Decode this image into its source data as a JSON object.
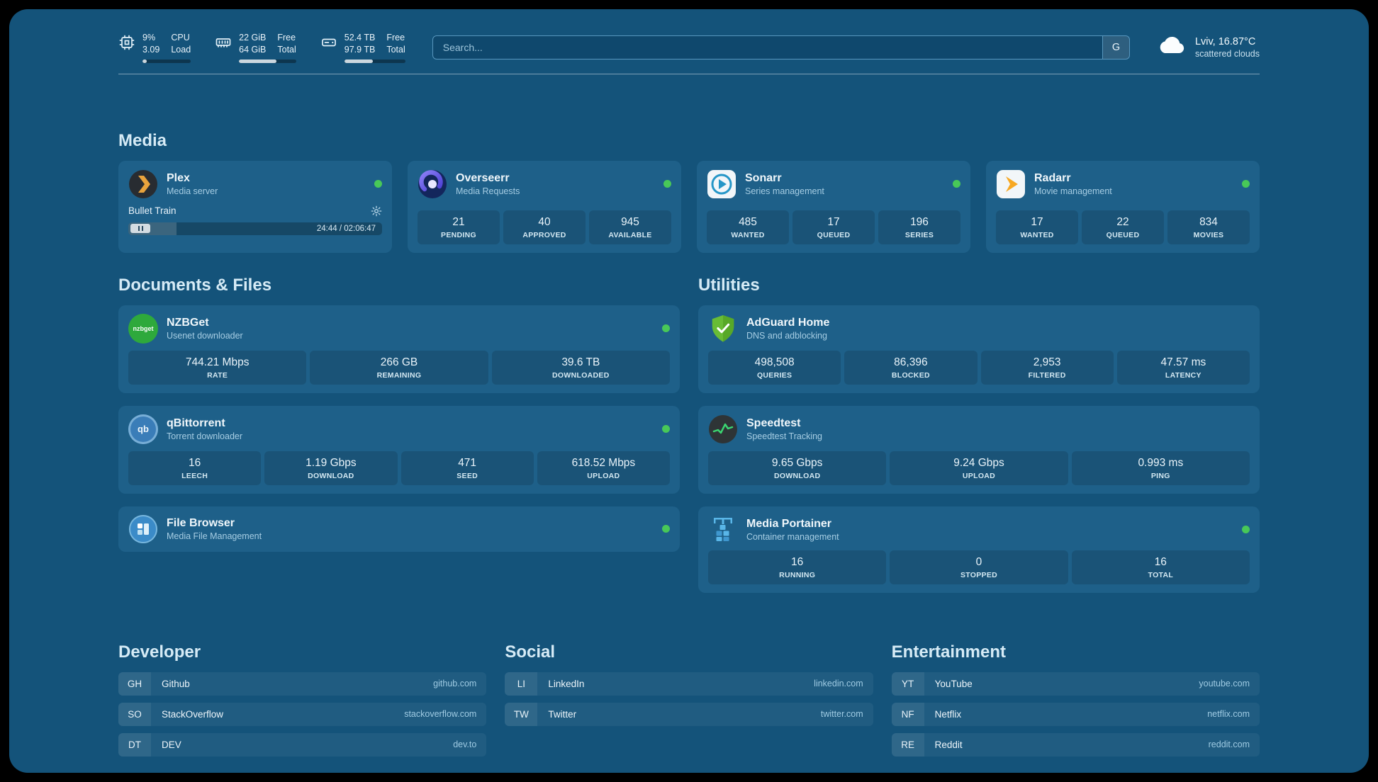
{
  "topbar": {
    "cpu": {
      "line1": "9%",
      "line2": "3.09",
      "label1": "CPU",
      "label2": "Load",
      "progress_pct": 9
    },
    "ram": {
      "line1": "22 GiB",
      "line2": "64 GiB",
      "label1": "Free",
      "label2": "Total",
      "progress_pct": 66
    },
    "disk": {
      "line1": "52.4 TB",
      "line2": "97.9 TB",
      "label1": "Free",
      "label2": "Total",
      "progress_pct": 47
    },
    "search": {
      "placeholder": "Search...",
      "engine_label": "G"
    },
    "weather": {
      "location": "Lviv, 16.87°C",
      "condition": "scattered clouds"
    }
  },
  "media": {
    "title": "Media",
    "plex": {
      "name": "Plex",
      "subtitle": "Media server",
      "now_playing": "Bullet Train",
      "time": "24:44 / 02:06:47",
      "progress_pct": 19
    },
    "overseerr": {
      "name": "Overseerr",
      "subtitle": "Media Requests",
      "stats": [
        {
          "value": "21",
          "label": "PENDING"
        },
        {
          "value": "40",
          "label": "APPROVED"
        },
        {
          "value": "945",
          "label": "AVAILABLE"
        }
      ]
    },
    "sonarr": {
      "name": "Sonarr",
      "subtitle": "Series management",
      "stats": [
        {
          "value": "485",
          "label": "WANTED"
        },
        {
          "value": "17",
          "label": "QUEUED"
        },
        {
          "value": "196",
          "label": "SERIES"
        }
      ]
    },
    "radarr": {
      "name": "Radarr",
      "subtitle": "Movie management",
      "stats": [
        {
          "value": "17",
          "label": "WANTED"
        },
        {
          "value": "22",
          "label": "QUEUED"
        },
        {
          "value": "834",
          "label": "MOVIES"
        }
      ]
    }
  },
  "documents": {
    "title": "Documents & Files",
    "nzbget": {
      "name": "NZBGet",
      "subtitle": "Usenet downloader",
      "icon_text": "nzbget",
      "stats": [
        {
          "value": "744.21 Mbps",
          "label": "RATE"
        },
        {
          "value": "266 GB",
          "label": "REMAINING"
        },
        {
          "value": "39.6 TB",
          "label": "DOWNLOADED"
        }
      ]
    },
    "qbittorrent": {
      "name": "qBittorrent",
      "subtitle": "Torrent downloader",
      "icon_text": "qb",
      "stats": [
        {
          "value": "16",
          "label": "LEECH"
        },
        {
          "value": "1.19 Gbps",
          "label": "DOWNLOAD"
        },
        {
          "value": "471",
          "label": "SEED"
        },
        {
          "value": "618.52 Mbps",
          "label": "UPLOAD"
        }
      ]
    },
    "filebrowser": {
      "name": "File Browser",
      "subtitle": "Media File Management"
    }
  },
  "utilities": {
    "title": "Utilities",
    "adguard": {
      "name": "AdGuard Home",
      "subtitle": "DNS and adblocking",
      "stats": [
        {
          "value": "498,508",
          "label": "QUERIES"
        },
        {
          "value": "86,396",
          "label": "BLOCKED"
        },
        {
          "value": "2,953",
          "label": "FILTERED"
        },
        {
          "value": "47.57 ms",
          "label": "LATENCY"
        }
      ]
    },
    "speedtest": {
      "name": "Speedtest",
      "subtitle": "Speedtest Tracking",
      "stats": [
        {
          "value": "9.65 Gbps",
          "label": "DOWNLOAD"
        },
        {
          "value": "9.24 Gbps",
          "label": "UPLOAD"
        },
        {
          "value": "0.993 ms",
          "label": "PING"
        }
      ]
    },
    "portainer": {
      "name": "Media Portainer",
      "subtitle": "Container management",
      "stats": [
        {
          "value": "16",
          "label": "RUNNING"
        },
        {
          "value": "0",
          "label": "STOPPED"
        },
        {
          "value": "16",
          "label": "TOTAL"
        }
      ]
    }
  },
  "bookmarks": {
    "developer": {
      "title": "Developer",
      "items": [
        {
          "abbr": "GH",
          "name": "Github",
          "url": "github.com"
        },
        {
          "abbr": "SO",
          "name": "StackOverflow",
          "url": "stackoverflow.com"
        },
        {
          "abbr": "DT",
          "name": "DEV",
          "url": "dev.to"
        }
      ]
    },
    "social": {
      "title": "Social",
      "items": [
        {
          "abbr": "LI",
          "name": "LinkedIn",
          "url": "linkedin.com"
        },
        {
          "abbr": "TW",
          "name": "Twitter",
          "url": "twitter.com"
        }
      ]
    },
    "entertainment": {
      "title": "Entertainment",
      "items": [
        {
          "abbr": "YT",
          "name": "YouTube",
          "url": "youtube.com"
        },
        {
          "abbr": "NF",
          "name": "Netflix",
          "url": "netflix.com"
        },
        {
          "abbr": "RE",
          "name": "Reddit",
          "url": "reddit.com"
        }
      ]
    }
  }
}
